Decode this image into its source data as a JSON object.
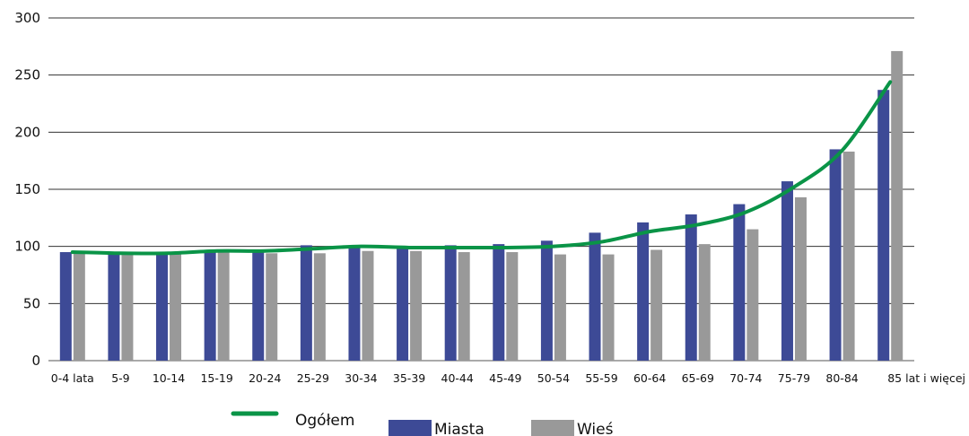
{
  "chart_data": {
    "type": "bar",
    "categories": [
      "0-4 lata",
      "5-9",
      "10-14",
      "15-19",
      "20-24",
      "25-29",
      "30-34",
      "35-39",
      "40-44",
      "45-49",
      "50-54",
      "55-59",
      "60-64",
      "65-69",
      "70-74",
      "75-79",
      "80-84",
      "85 lat i więcej"
    ],
    "series": [
      {
        "name": "Miasta",
        "type": "bar",
        "color": "#3d4a96",
        "values": [
          95,
          94,
          94,
          96,
          97,
          101,
          101,
          100,
          101,
          102,
          105,
          112,
          121,
          128,
          137,
          157,
          185,
          237
        ]
      },
      {
        "name": "Wieś",
        "type": "bar",
        "color": "#999999",
        "values": [
          96,
          95,
          95,
          95,
          94,
          94,
          96,
          96,
          95,
          95,
          93,
          93,
          97,
          102,
          115,
          143,
          183,
          271
        ]
      },
      {
        "name": "Ogółem",
        "type": "line",
        "color": "#0a9447",
        "values": [
          95,
          94,
          94,
          96,
          96,
          98,
          100,
          99,
          99,
          99,
          100,
          104,
          113,
          119,
          130,
          152,
          184,
          244
        ]
      }
    ],
    "ylim": [
      0,
      300
    ],
    "yticks": [
      0,
      50,
      100,
      150,
      200,
      250,
      300
    ],
    "grid": true,
    "legend_position": "bottom"
  }
}
